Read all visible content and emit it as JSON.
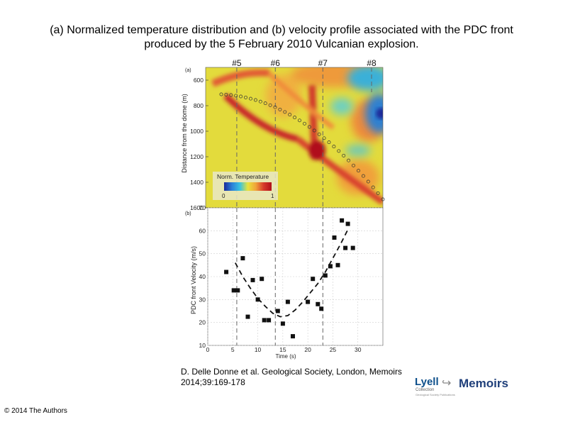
{
  "title": {
    "line1": "(a) Normalized temperature distribution and (b) velocity profile associated with the PDC front",
    "line2": "produced by the 5 February 2010 Vulcanian explosion."
  },
  "citation": {
    "line1": "D. Delle Donne et al. Geological Society, London, Memoirs",
    "line2": "2014;39:169-178"
  },
  "copyright": "© 2014 The Authors",
  "logo": {
    "lyell": "Lyell",
    "memoirs": "Memoirs",
    "sub": "Collection",
    "sub2": "Geological Society Publications"
  },
  "chart_data": [
    {
      "type": "heatmap",
      "panel_label": "(a)",
      "ylabel": "Distance from the dome (m)",
      "ylim": [
        1600,
        500
      ],
      "yticks": [
        "600",
        "800",
        "1000",
        "1200",
        "1400",
        "1600"
      ],
      "markers": [
        "#5",
        "#6",
        "#7",
        "#8"
      ],
      "colorbar": {
        "label": "Norm. Temperature",
        "min": "0",
        "max": "1",
        "colors": [
          "#1a2a9a",
          "#2b7fd8",
          "#38c2e0",
          "#e8e33a",
          "#f0a43a",
          "#d63a2a",
          "#b0101a"
        ]
      },
      "colors": {
        "background": "#e3db3c",
        "hot": "#c8242a",
        "warm": "#ee8a3a",
        "cold": "#3aa8d8",
        "deep": "#1a2a9a"
      }
    },
    {
      "type": "scatter",
      "panel_label": "(b)",
      "xlabel": "Time (s)",
      "ylabel": "PDC front Velocity (m/s)",
      "xlim": [
        0,
        35
      ],
      "ylim": [
        10,
        70
      ],
      "xticks": [
        "0",
        "5",
        "10",
        "15",
        "20",
        "25",
        "30"
      ],
      "yticks": [
        "10",
        "20",
        "30",
        "40",
        "50",
        "60",
        "70"
      ],
      "markers_at_time": [
        5.8,
        13.5,
        23.0
      ],
      "points": [
        [
          3.7,
          42
        ],
        [
          5.2,
          34
        ],
        [
          6.0,
          34
        ],
        [
          7.0,
          48
        ],
        [
          8.0,
          22.5
        ],
        [
          9.0,
          38.5
        ],
        [
          10.0,
          30
        ],
        [
          10.8,
          39
        ],
        [
          11.3,
          21
        ],
        [
          12.2,
          21
        ],
        [
          14.0,
          25
        ],
        [
          15.0,
          19.5
        ],
        [
          16.0,
          29
        ],
        [
          17.0,
          14
        ],
        [
          20.0,
          29
        ],
        [
          21.0,
          39
        ],
        [
          22.0,
          28
        ],
        [
          22.7,
          26
        ],
        [
          23.5,
          40.5
        ],
        [
          24.5,
          44.5
        ],
        [
          25.3,
          57
        ],
        [
          26.0,
          45
        ],
        [
          26.8,
          64.5
        ],
        [
          27.5,
          52.5
        ],
        [
          28.0,
          63
        ],
        [
          29.0,
          52.5
        ]
      ],
      "fit_curve": [
        [
          5.5,
          46
        ],
        [
          7,
          40
        ],
        [
          8.5,
          35
        ],
        [
          10,
          30.5
        ],
        [
          11.5,
          27
        ],
        [
          13,
          24
        ],
        [
          14.5,
          22.5
        ],
        [
          16,
          23
        ],
        [
          17.5,
          25.5
        ],
        [
          19,
          29
        ],
        [
          20.5,
          33
        ],
        [
          22,
          37
        ],
        [
          23.5,
          42
        ],
        [
          25,
          48
        ],
        [
          26.5,
          54
        ],
        [
          28,
          60.5
        ]
      ]
    }
  ]
}
